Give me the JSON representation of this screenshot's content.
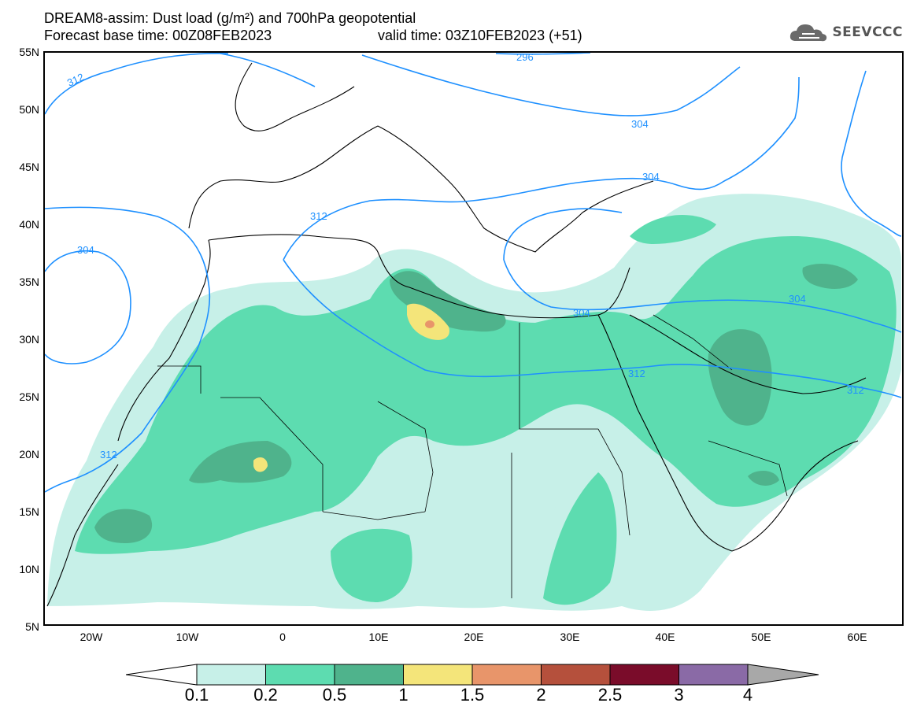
{
  "header": {
    "title_line1": "DREAM8-assim: Dust load (g/m²) and 700hPa geopotential",
    "title_line2a": "Forecast base time: 00Z08FEB2023",
    "title_line2b": "valid time: 03Z10FEB2023 (+51)",
    "logo_text": "SEEVCCC"
  },
  "axes": {
    "lat_labels": [
      "55N",
      "50N",
      "45N",
      "40N",
      "35N",
      "30N",
      "25N",
      "20N",
      "15N",
      "10N",
      "5N"
    ],
    "lon_labels": [
      "20W",
      "10W",
      "0",
      "10E",
      "20E",
      "30E",
      "40E",
      "50E",
      "60E"
    ]
  },
  "contours": {
    "labels": [
      "312",
      "296",
      "304",
      "304",
      "312",
      "304",
      "304",
      "312",
      "304",
      "312",
      "312"
    ]
  },
  "colorbar": {
    "ticks": [
      "0.1",
      "0.2",
      "0.5",
      "1",
      "1.5",
      "2",
      "2.5",
      "3",
      "4"
    ],
    "colors": [
      "#c7f0e8",
      "#5ddcb0",
      "#4fb38c",
      "#f4e57a",
      "#e8956a",
      "#b5503c",
      "#7a0c2a",
      "#8a6aa6",
      "#a8a8a8"
    ],
    "below_color": "#ffffff"
  },
  "colors": {
    "dust_light": "#c7f0e8",
    "dust_medium": "#5ddcb0",
    "dust_dark": "#4fb38c",
    "dust_yellow": "#f4e57a",
    "dust_orange": "#e8956a",
    "contour_line": "#1e90ff"
  }
}
